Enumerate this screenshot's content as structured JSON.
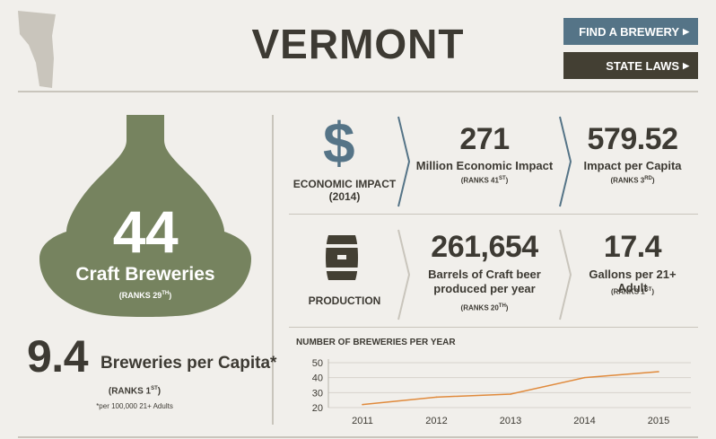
{
  "header": {
    "title": "VERMONT",
    "find_brewery_label": "FIND A BREWERY",
    "state_laws_label": "STATE LAWS",
    "arrow": "▶"
  },
  "breweries": {
    "count": "44",
    "label": "Craft Breweries",
    "rank_text": "(RANKS 29",
    "rank_sup": "TH",
    "rank_close": ")"
  },
  "per_capita": {
    "value": "9.4",
    "label": "Breweries per Capita*",
    "rank_text": "(RANKS 1",
    "rank_sup": "ST",
    "rank_close": ")",
    "note": "*per 100,000 21+ Adults"
  },
  "economic": {
    "icon": "$",
    "label_line1": "ECONOMIC IMPACT",
    "label_line2": "(2014)",
    "value1": "271",
    "label1": "Million Economic Impact",
    "rank1_text": "(RANKS 41",
    "rank1_sup": "ST",
    "rank1_close": ")",
    "value2": "579.52",
    "label2": "Impact per Capita",
    "rank2_text": "(RANKS 3",
    "rank2_sup": "RD",
    "rank2_close": ")"
  },
  "production": {
    "label": "PRODUCTION",
    "value1": "261,654",
    "label1_line1": "Barrels of Craft beer",
    "label1_line2": "produced per year",
    "rank1_text": "(RANKS 20",
    "rank1_sup": "TH",
    "rank1_close": ")",
    "value2": "17.4",
    "label2": "Gallons per 21+ Adult",
    "rank2_text": "(RANKS 1",
    "rank2_sup": "ST",
    "rank2_close": ")"
  },
  "colors": {
    "bottle": "#76835f",
    "blue": "#557487",
    "dark": "#433f33",
    "line": "#e08a3c"
  },
  "chart_data": {
    "type": "line",
    "title": "NUMBER OF BREWERIES PER YEAR",
    "x": [
      "2011",
      "2012",
      "2013",
      "2014",
      "2015"
    ],
    "y_ticks": [
      "20",
      "30",
      "40",
      "50"
    ],
    "series": [
      {
        "values": [
          22,
          27,
          29,
          40,
          44
        ]
      }
    ],
    "ylim": [
      20,
      50
    ],
    "grid": true
  }
}
